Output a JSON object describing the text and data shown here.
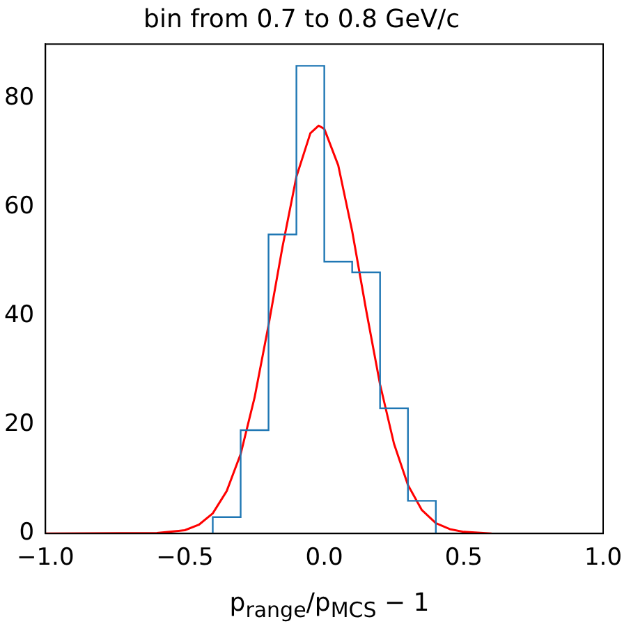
{
  "chart_data": {
    "type": "histogram",
    "title": "bin from 0.7 to 0.8 GeV/c",
    "xlabel": "p$_{range}$/p$_{MCS}$ − 1",
    "xlim": [
      -1,
      1
    ],
    "xticks": [
      {
        "value": -1,
        "label": "−1.0"
      },
      {
        "value": -0.5,
        "label": "−0.5"
      },
      {
        "value": 0,
        "label": "0.0"
      },
      {
        "value": 0.5,
        "label": "0.5"
      },
      {
        "value": 1,
        "label": "1.0"
      }
    ],
    "ylim": [
      0,
      90
    ],
    "yticks": [
      0,
      20,
      40,
      60,
      80
    ],
    "grid": false,
    "legend": false,
    "series": [
      {
        "type": "histogram",
        "color": "#1f77b4",
        "bins": [
          -0.4,
          -0.3,
          -0.2,
          -0.1,
          0,
          0.1,
          0.2,
          0.3,
          0.4
        ],
        "values": [
          3,
          19,
          55,
          86,
          50,
          48,
          23,
          6
        ]
      },
      {
        "type": "line",
        "color": "#ff0000",
        "x": [
          -1,
          -0.6,
          -0.5,
          -0.45,
          -0.4,
          -0.35,
          -0.3,
          -0.25,
          -0.2,
          -0.15,
          -0.1,
          -0.05,
          -0.02,
          0,
          0.05,
          0.1,
          0.15,
          0.2,
          0.25,
          0.3,
          0.35,
          0.4,
          0.45,
          0.5,
          0.6
        ],
        "values": [
          0,
          0.1,
          0.6,
          1.6,
          3.7,
          7.8,
          14.6,
          25,
          38.3,
          52.7,
          65.6,
          73.6,
          75,
          74.4,
          67.7,
          55.6,
          41.1,
          27.4,
          16.5,
          8.9,
          4.3,
          1.9,
          0.8,
          0.3,
          0
        ]
      }
    ]
  }
}
